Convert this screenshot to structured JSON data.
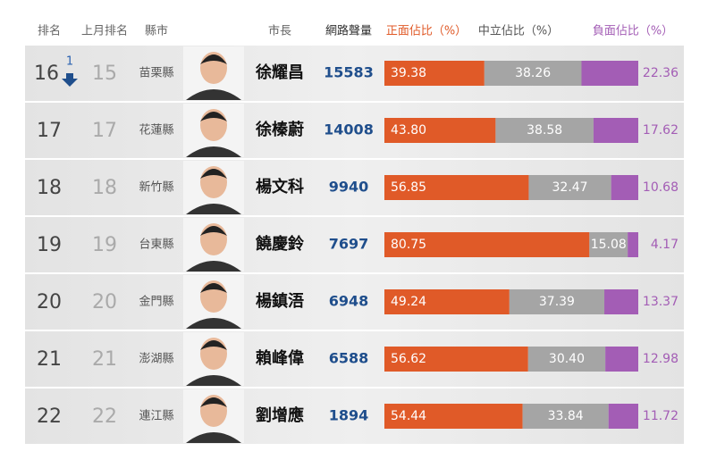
{
  "chart_data": {
    "type": "ranking-table",
    "columns": [
      "排名",
      "上月排名",
      "縣市",
      "市長",
      "網路聲量",
      "正面佔比（%）",
      "中立佔比（%）",
      "負面佔比（%）"
    ],
    "colors": [
      "#e05a28",
      "#a5a5a5",
      "#a35db5"
    ],
    "rows": [
      {
        "rank": 16,
        "change": "1",
        "prev": 15,
        "county": "苗栗縣",
        "mayor": "徐耀昌",
        "buzz": 15583,
        "values": [
          39.38,
          38.26,
          22.36
        ],
        "value_labels": [
          "39.38",
          "38.26",
          "22.36"
        ]
      },
      {
        "rank": 17,
        "prev": 17,
        "county": "花蓮縣",
        "mayor": "徐榛蔚",
        "buzz": 14008,
        "values": [
          43.8,
          38.58,
          17.62
        ],
        "value_labels": [
          "43.80",
          "38.58",
          "17.62"
        ]
      },
      {
        "rank": 18,
        "prev": 18,
        "county": "新竹縣",
        "mayor": "楊文科",
        "buzz": 9940,
        "values": [
          56.85,
          32.47,
          10.68
        ],
        "value_labels": [
          "56.85",
          "32.47",
          "10.68"
        ]
      },
      {
        "rank": 19,
        "prev": 19,
        "county": "台東縣",
        "mayor": "饒慶鈴",
        "buzz": 7697,
        "values": [
          80.75,
          15.08,
          4.17
        ],
        "value_labels": [
          "80.75",
          "15.08",
          "4.17"
        ]
      },
      {
        "rank": 20,
        "prev": 20,
        "county": "金門縣",
        "mayor": "楊鎮浯",
        "buzz": 6948,
        "values": [
          49.24,
          37.39,
          13.37
        ],
        "value_labels": [
          "49.24",
          "37.39",
          "13.37"
        ]
      },
      {
        "rank": 21,
        "prev": 21,
        "county": "澎湖縣",
        "mayor": "賴峰偉",
        "buzz": 6588,
        "values": [
          56.62,
          30.4,
          12.98
        ],
        "value_labels": [
          "56.62",
          "30.40",
          "12.98"
        ]
      },
      {
        "rank": 22,
        "prev": 22,
        "county": "連江縣",
        "mayor": "劉增應",
        "buzz": 1894,
        "values": [
          54.44,
          33.84,
          11.72
        ],
        "value_labels": [
          "54.44",
          "33.84",
          "11.72"
        ]
      }
    ]
  }
}
